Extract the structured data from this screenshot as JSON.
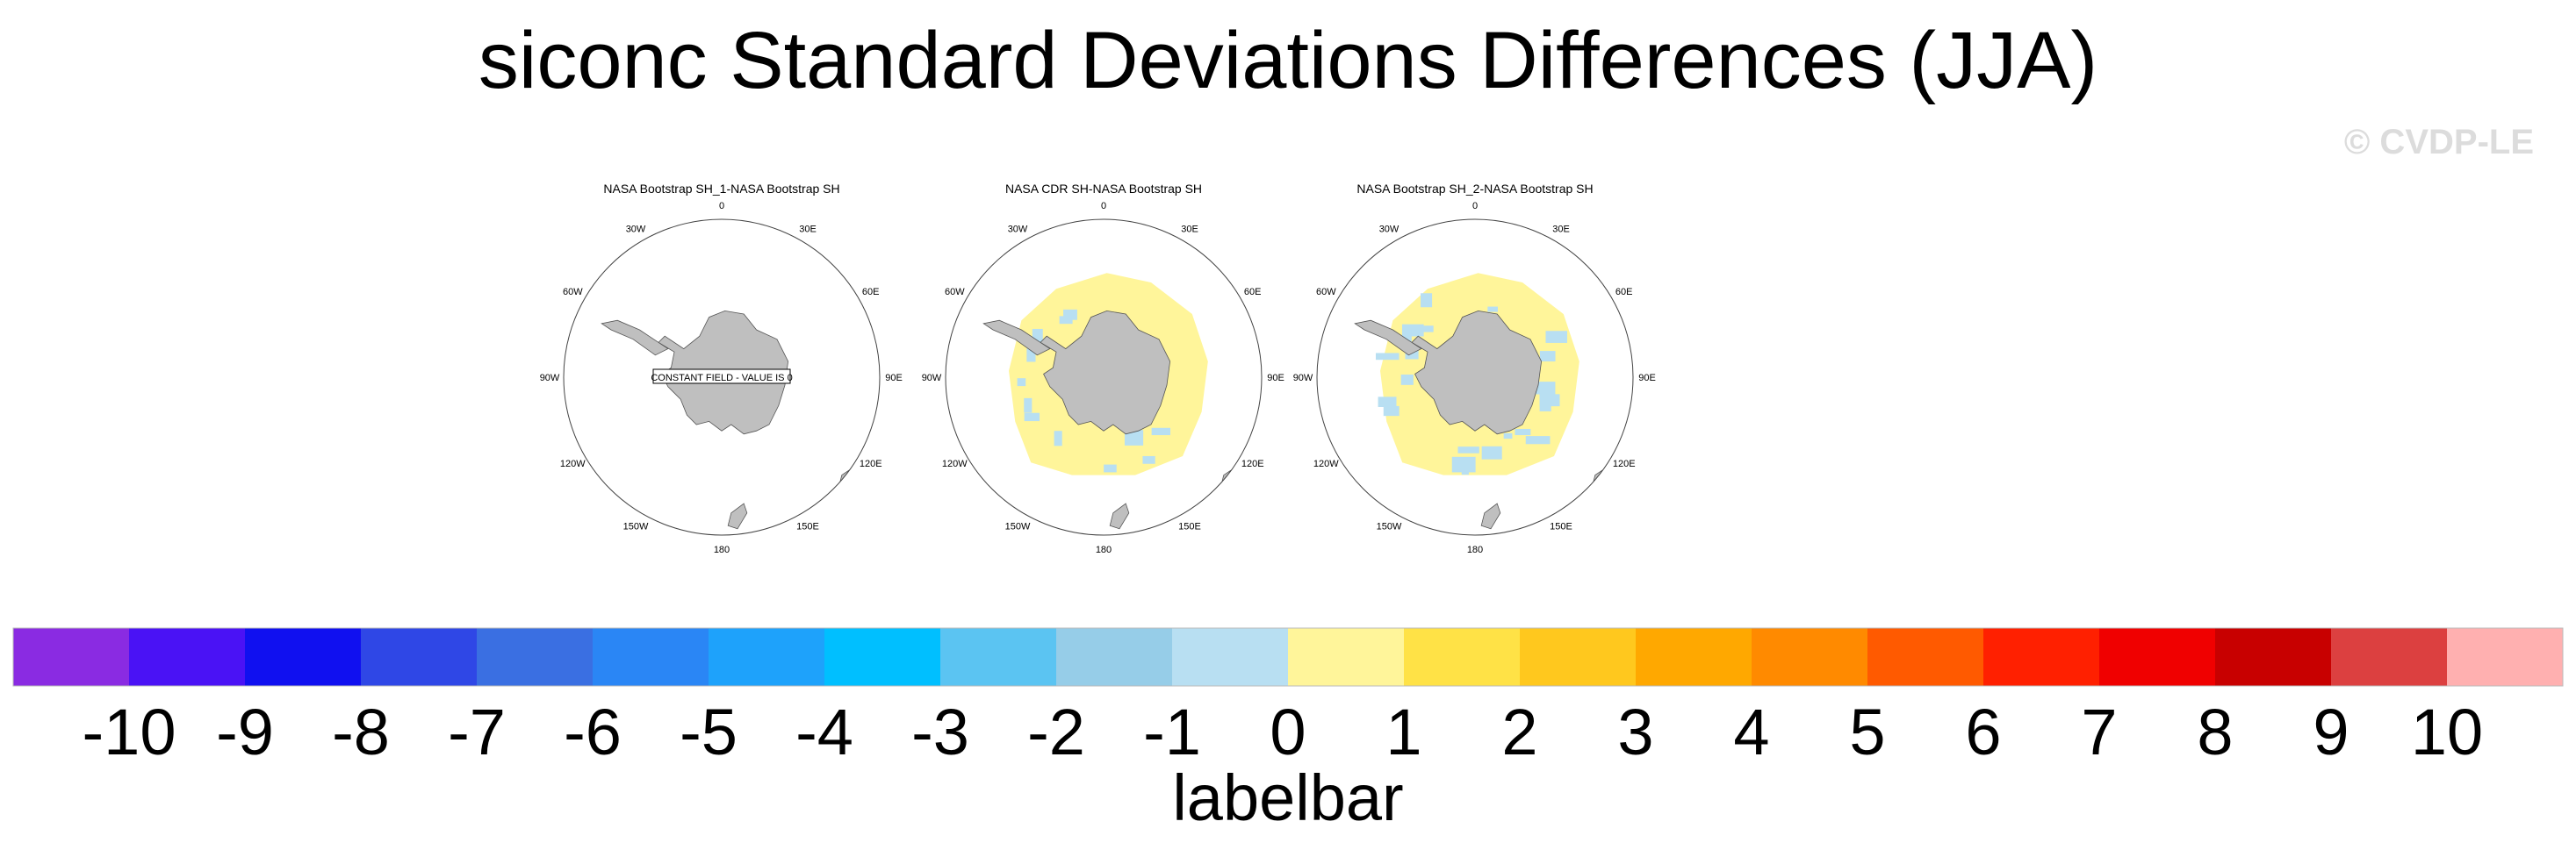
{
  "title": "siconc Standard Deviations Differences (JJA)",
  "watermark": "© CVDP-LE",
  "panels": [
    {
      "title": "NASA Bootstrap SH_1-NASA Bootstrap SH",
      "note": "CONSTANT FIELD - VALUE IS 0",
      "fill": "none"
    },
    {
      "title": "NASA CDR SH-NASA Bootstrap SH",
      "note": "",
      "fill": "ring"
    },
    {
      "title": "NASA Bootstrap SH_2-NASA Bootstrap SH",
      "note": "",
      "fill": "ring2"
    }
  ],
  "lon_labels": [
    "0",
    "30E",
    "60E",
    "90E",
    "120E",
    "150E",
    "180",
    "150W",
    "120W",
    "90W",
    "60W",
    "30W"
  ],
  "labelbar": {
    "title": "labelbar",
    "ticks": [
      "-10",
      "-9",
      "-8",
      "-7",
      "-6",
      "-5",
      "-4",
      "-3",
      "-2",
      "-1",
      "0",
      "1",
      "2",
      "3",
      "4",
      "5",
      "6",
      "7",
      "8",
      "9",
      "10"
    ],
    "colors": [
      "#8a2be2",
      "#4a12f5",
      "#1010f0",
      "#2f47e6",
      "#3a6fe2",
      "#2a86f5",
      "#1ea2fb",
      "#00bfff",
      "#5bc4f2",
      "#96cde8",
      "#b8dff2",
      "#fff59a",
      "#ffe246",
      "#ffc81e",
      "#ffa800",
      "#ff8a00",
      "#ff5a00",
      "#ff2000",
      "#f00000",
      "#c80000",
      "#dc4040",
      "#ffb0b0"
    ]
  },
  "colors": {
    "land": "#bfbfbf",
    "ice_pos": "#fff59a",
    "ice_neg": "#b8dff2"
  }
}
